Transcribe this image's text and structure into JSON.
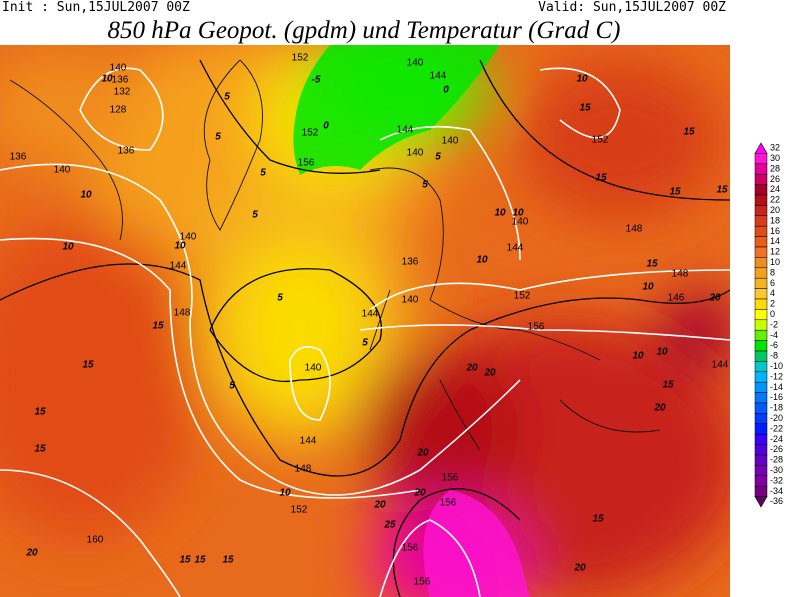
{
  "header": {
    "init": "Init : Sun,15JUL2007 00Z",
    "valid": "Valid: Sun,15JUL2007 00Z",
    "title": "850 hPa Geopot. (gpdm) und Temperatur (Grad C)"
  },
  "map": {
    "geopotential_labels": [
      140,
      136,
      132,
      128,
      136,
      136,
      140,
      152,
      140,
      144,
      152,
      156,
      144,
      140,
      140,
      152,
      140,
      144,
      148,
      136,
      140,
      144,
      152,
      144,
      140,
      148,
      148,
      146,
      156,
      140,
      144,
      148,
      152,
      160,
      156,
      156,
      156,
      156,
      144
    ],
    "temperature_labels": [
      10,
      15,
      10,
      15,
      15,
      15,
      15,
      10,
      10,
      10,
      10,
      10,
      10,
      15,
      10,
      20,
      15,
      15,
      15,
      15,
      10,
      10,
      20,
      20,
      15,
      20,
      20,
      20,
      20,
      25,
      10,
      20,
      15,
      15,
      15,
      15,
      20,
      5,
      5,
      5,
      5,
      5,
      5,
      5,
      5,
      5,
      0,
      0,
      -5
    ]
  },
  "colorbar": {
    "levels": [
      32,
      30,
      28,
      26,
      24,
      22,
      20,
      18,
      16,
      14,
      12,
      10,
      8,
      6,
      4,
      2,
      0,
      -2,
      -4,
      -6,
      -8,
      -10,
      -12,
      -14,
      -16,
      -18,
      -20,
      -22,
      -24,
      -26,
      -28,
      -30,
      -32,
      -34,
      -36
    ],
    "colors": [
      "#ff00ff",
      "#ff14d2",
      "#e6009b",
      "#cd0064",
      "#a5002d",
      "#b40f14",
      "#c8231e",
      "#d73c19",
      "#e14b14",
      "#eb5f14",
      "#f07323",
      "#f08c1e",
      "#f5a01e",
      "#f5b41e",
      "#fac828",
      "#fadc00",
      "#ffff00",
      "#c8ff00",
      "#64f000",
      "#00e600",
      "#00c864",
      "#00c8c8",
      "#00b4ff",
      "#0096ff",
      "#0078ff",
      "#005aff",
      "#003cff",
      "#001eff",
      "#3c00ff",
      "#5000dc",
      "#6400c8",
      "#7800b4",
      "#8200a0",
      "#780082",
      "#640064"
    ]
  }
}
